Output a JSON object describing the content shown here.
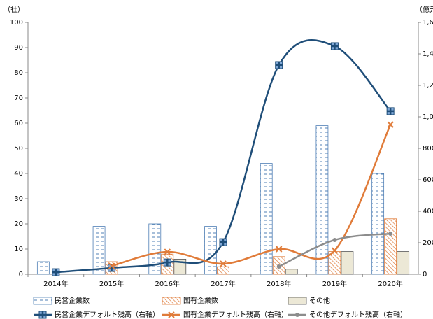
{
  "chart_data": {
    "type": "bar_line",
    "y_unit": "（社）",
    "y2_unit": "（億元）",
    "categories": [
      "2014年",
      "2015年",
      "2016年",
      "2017年",
      "2018年",
      "2019年",
      "2020年"
    ],
    "ylim": [
      0,
      100
    ],
    "yticks": [
      0,
      10,
      20,
      30,
      40,
      50,
      60,
      70,
      80,
      90,
      100
    ],
    "y2lim": [
      0,
      1600
    ],
    "y2ticks": [
      0,
      200,
      400,
      600,
      800,
      {
        "value": 1000,
        "label": "1,000"
      },
      {
        "value": 1200,
        "label": "1,200"
      },
      {
        "value": 1400,
        "label": "1,400"
      },
      {
        "value": 1600,
        "label": "1,600"
      }
    ],
    "series": [
      {
        "name": "民営企業数",
        "kind": "bar",
        "color": "#4f7fb5",
        "values": [
          5,
          19,
          20,
          19,
          44,
          59,
          40
        ]
      },
      {
        "name": "国有企業数",
        "kind": "bar",
        "color": "#e07b39",
        "values": [
          0,
          5,
          8,
          3,
          7,
          9,
          22
        ]
      },
      {
        "name": "その他",
        "kind": "bar",
        "color": "#ece8d6",
        "values": [
          0,
          0,
          6,
          0,
          2,
          9,
          9
        ]
      },
      {
        "name": "民営企業デフォルト残高（右軸）",
        "kind": "line",
        "axis": "y2",
        "color": "#1f4e79",
        "marker": "plus",
        "values": [
          13,
          40,
          75,
          204,
          1329,
          1449,
          1036
        ]
      },
      {
        "name": "国有企業デフォルト残高（右軸）",
        "kind": "line",
        "axis": "y2",
        "color": "#e07b39",
        "marker": "x",
        "values": [
          null,
          53,
          142,
          67,
          160,
          151,
          951
        ]
      },
      {
        "name": "その他デフォルト残高（右軸）",
        "kind": "line",
        "axis": "y2",
        "color": "#8c8c8c",
        "marker": "dot",
        "values": [
          null,
          null,
          null,
          null,
          49,
          218,
          258
        ]
      }
    ]
  }
}
